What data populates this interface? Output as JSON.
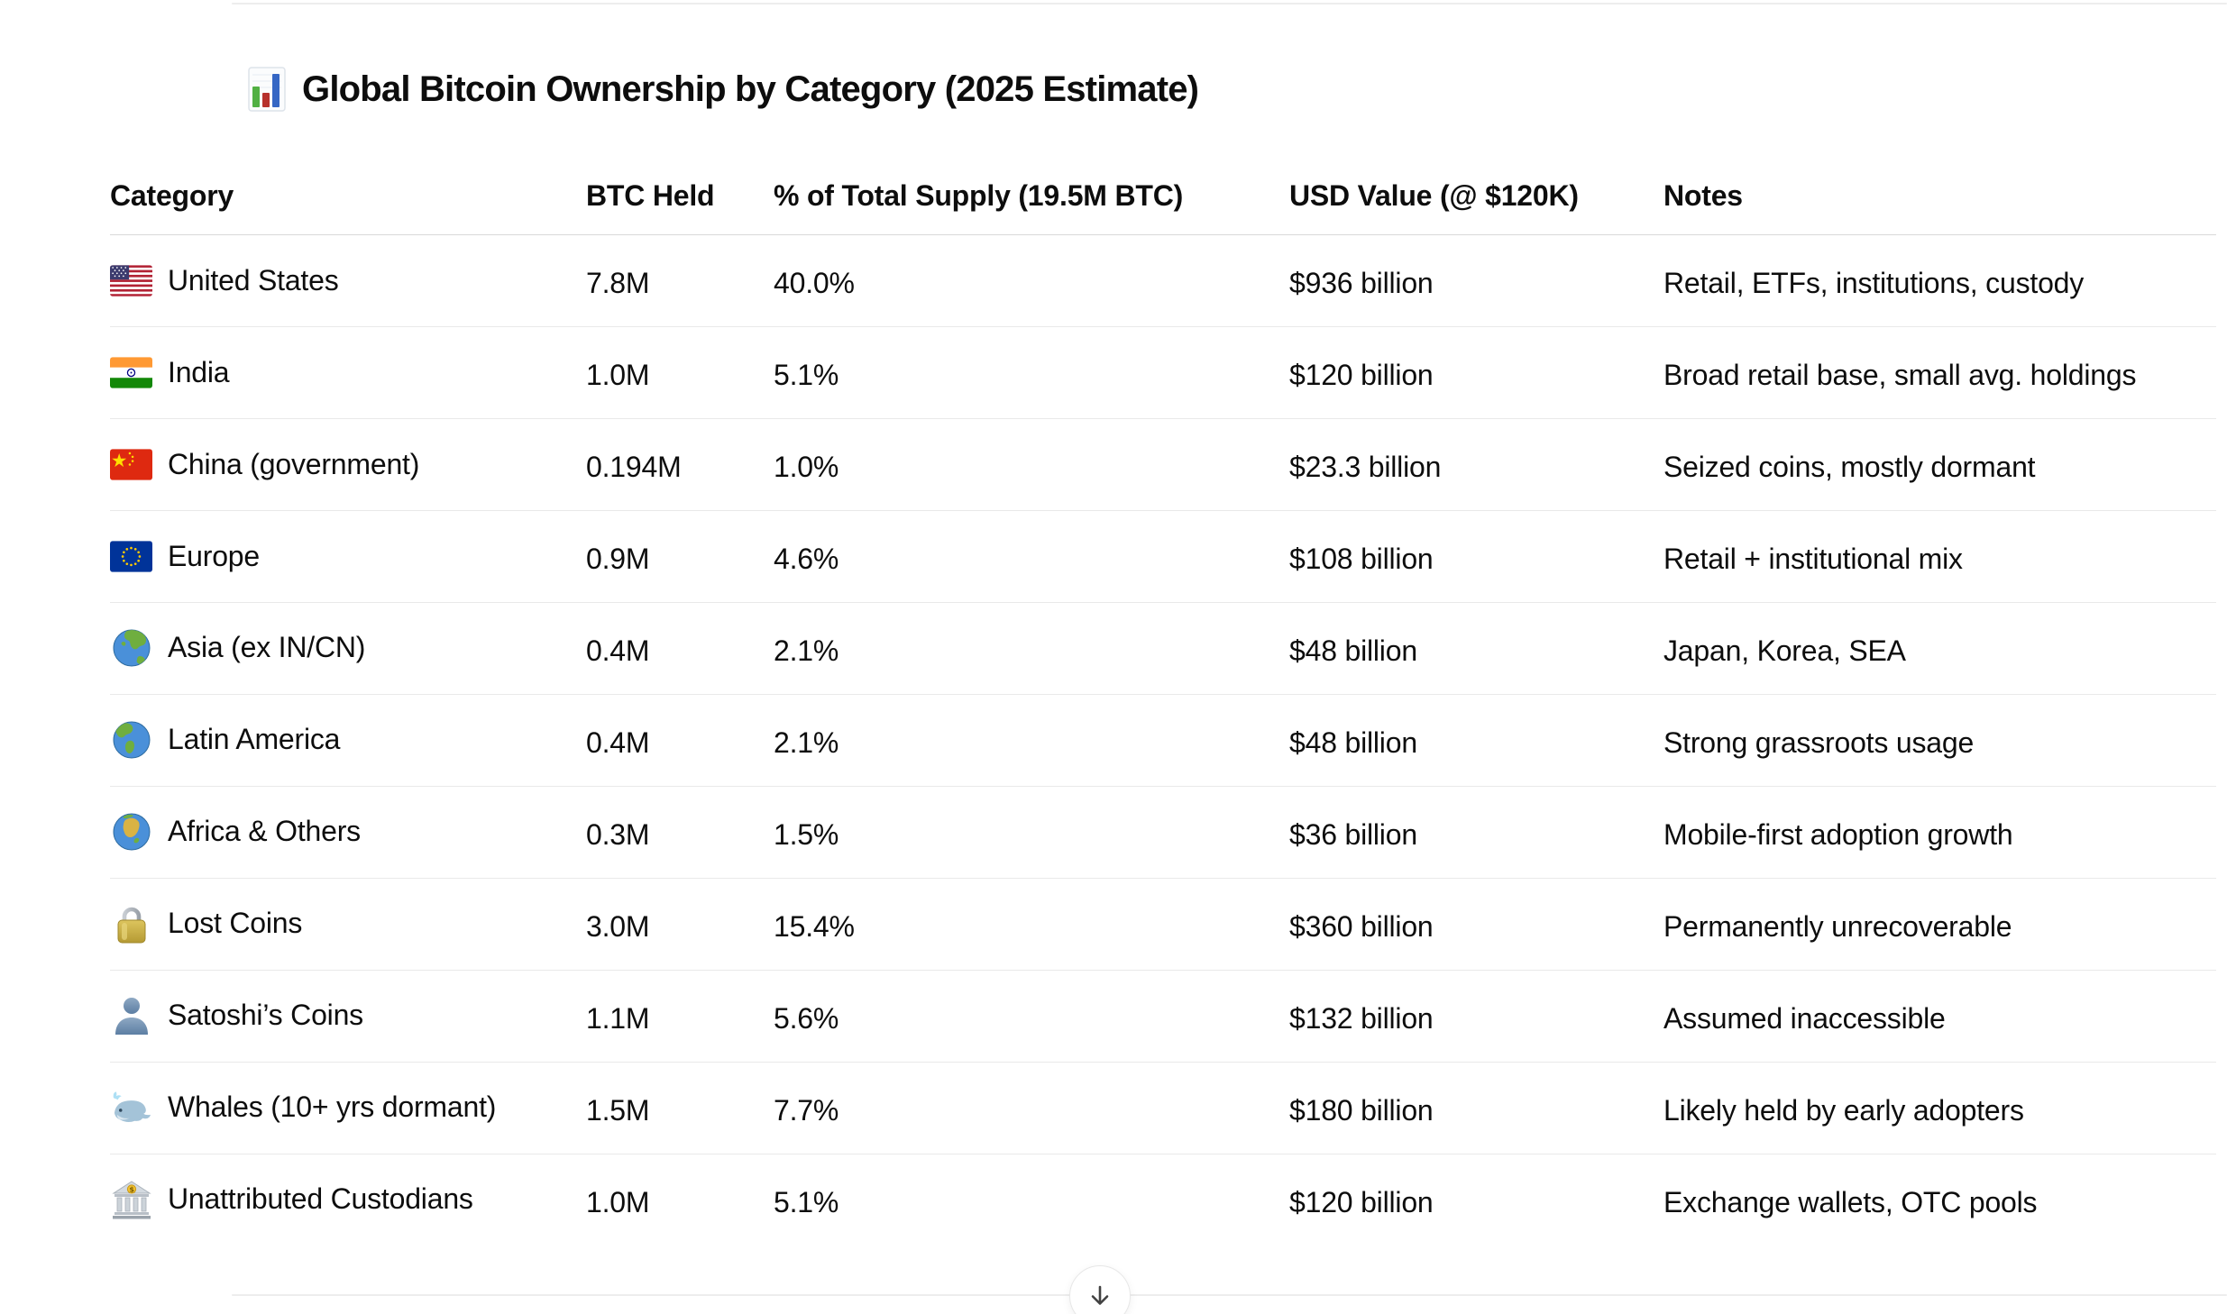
{
  "title": {
    "icon": "bar-chart-icon",
    "text": "Global Bitcoin Ownership by Category (2025 Estimate)"
  },
  "table": {
    "headers": {
      "category": "Category",
      "btc_held": "BTC Held",
      "pct_supply": "% of Total Supply (19.5M BTC)",
      "usd_value": "USD Value (@ $120K)",
      "notes": "Notes"
    },
    "rows": [
      {
        "icon": "us-flag-icon",
        "category": "United States",
        "btc_held": "7.8M",
        "pct_supply": "40.0%",
        "usd_value": "$936 billion",
        "notes": "Retail, ETFs, institutions, custody"
      },
      {
        "icon": "india-flag-icon",
        "category": "India",
        "btc_held": "1.0M",
        "pct_supply": "5.1%",
        "usd_value": "$120 billion",
        "notes": "Broad retail base, small avg. holdings"
      },
      {
        "icon": "china-flag-icon",
        "category": "China (government)",
        "btc_held": "0.194M",
        "pct_supply": "1.0%",
        "usd_value": "$23.3 billion",
        "notes": "Seized coins, mostly dormant"
      },
      {
        "icon": "eu-flag-icon",
        "category": "Europe",
        "btc_held": "0.9M",
        "pct_supply": "4.6%",
        "usd_value": "$108 billion",
        "notes": "Retail + institutional mix"
      },
      {
        "icon": "globe-asia-icon",
        "category": "Asia (ex IN/CN)",
        "btc_held": "0.4M",
        "pct_supply": "2.1%",
        "usd_value": "$48 billion",
        "notes": "Japan, Korea, SEA"
      },
      {
        "icon": "globe-americas-icon",
        "category": "Latin America",
        "btc_held": "0.4M",
        "pct_supply": "2.1%",
        "usd_value": "$48 billion",
        "notes": "Strong grassroots usage"
      },
      {
        "icon": "globe-africa-icon",
        "category": "Africa & Others",
        "btc_held": "0.3M",
        "pct_supply": "1.5%",
        "usd_value": "$36 billion",
        "notes": "Mobile-first adoption growth"
      },
      {
        "icon": "lock-icon",
        "category": "Lost Coins",
        "btc_held": "3.0M",
        "pct_supply": "15.4%",
        "usd_value": "$360 billion",
        "notes": "Permanently unrecoverable"
      },
      {
        "icon": "person-icon",
        "category": "Satoshi’s Coins",
        "btc_held": "1.1M",
        "pct_supply": "5.6%",
        "usd_value": "$132 billion",
        "notes": "Assumed inaccessible"
      },
      {
        "icon": "whale-icon",
        "category": "Whales (10+ yrs dormant)",
        "btc_held": "1.5M",
        "pct_supply": "7.7%",
        "usd_value": "$180 billion",
        "notes": "Likely held by early adopters"
      },
      {
        "icon": "bank-icon",
        "category": "Unattributed Custodians",
        "btc_held": "1.0M",
        "pct_supply": "5.1%",
        "usd_value": "$120 billion",
        "notes": "Exchange wallets, OTC pools"
      }
    ]
  },
  "scroll_button": {
    "icon": "down-arrow-icon"
  },
  "colors": {
    "text": "#0d0d0d",
    "row_divider": "#e9e9e9",
    "header_divider": "#d9d9d9",
    "content_divider": "#ededed",
    "background": "#ffffff"
  }
}
